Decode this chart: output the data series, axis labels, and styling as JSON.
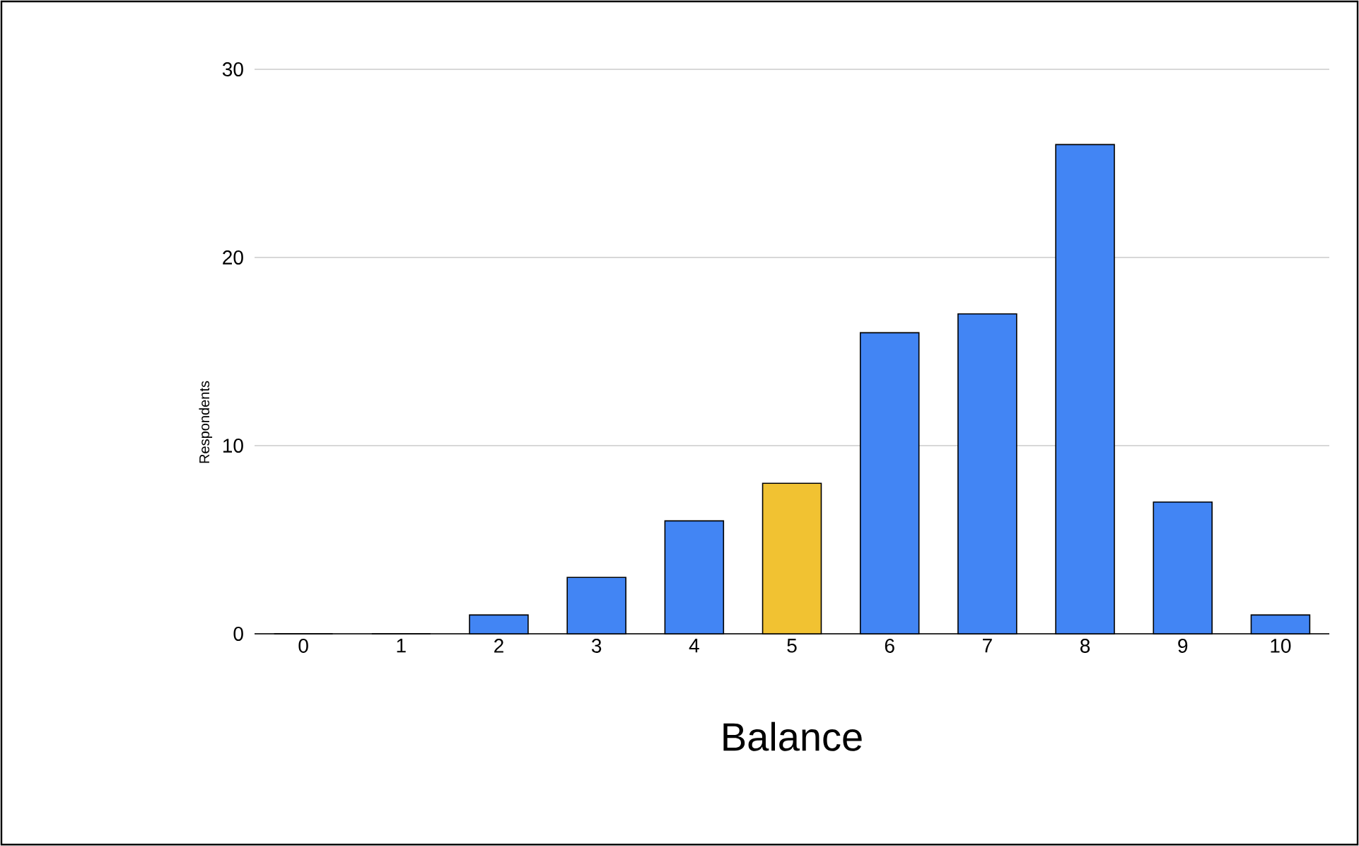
{
  "chart_data": {
    "type": "bar",
    "xlabel": "Balance",
    "ylabel": "Respondents",
    "categories": [
      "0",
      "1",
      "2",
      "3",
      "4",
      "5",
      "6",
      "7",
      "8",
      "9",
      "10"
    ],
    "values": [
      0,
      0,
      1,
      3,
      6,
      8,
      16,
      17,
      26,
      7,
      1
    ],
    "colors": [
      "#4285f4",
      "#4285f4",
      "#4285f4",
      "#4285f4",
      "#4285f4",
      "#f1c232",
      "#4285f4",
      "#4285f4",
      "#4285f4",
      "#4285f4",
      "#4285f4"
    ],
    "ylim": [
      0,
      30
    ],
    "yticks": [
      0,
      10,
      20,
      30
    ],
    "grid": "y"
  }
}
